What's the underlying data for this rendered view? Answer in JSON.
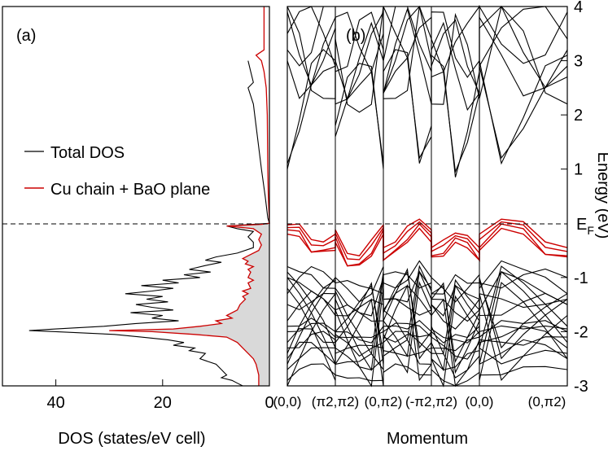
{
  "chart_data": [
    {
      "panel_label": "(a)",
      "type": "line",
      "orientation": "horizontal-dos",
      "xlabel": "DOS  (states/eV cell)",
      "x_ticks": [
        40,
        20,
        0
      ],
      "xlim": [
        50,
        0
      ],
      "ylim": [
        -3,
        4
      ],
      "grid": false,
      "legend_position": "middle-left",
      "series": [
        {
          "name": "Total DOS",
          "color": "#000000",
          "points": [
            [
              4.0,
              3.0
            ],
            [
              3.5,
              2.8
            ],
            [
              3.0,
              2.6
            ],
            [
              4.0,
              2.5
            ],
            [
              3.0,
              2.2
            ],
            [
              2.5,
              1.8
            ],
            [
              2.0,
              1.4
            ],
            [
              1.5,
              1.0
            ],
            [
              0.8,
              0.5
            ],
            [
              0.3,
              0.1
            ],
            [
              0.0,
              0.0
            ],
            [
              3.0,
              -0.02
            ],
            [
              8.0,
              -0.05
            ],
            [
              6.0,
              -0.1
            ],
            [
              3.0,
              -0.15
            ],
            [
              4.0,
              -0.25
            ],
            [
              3.0,
              -0.35
            ],
            [
              3.0,
              -0.45
            ],
            [
              6.0,
              -0.55
            ],
            [
              10.0,
              -0.62
            ],
            [
              12.0,
              -0.68
            ],
            [
              9.0,
              -0.72
            ],
            [
              12.0,
              -0.78
            ],
            [
              15.0,
              -0.85
            ],
            [
              11.0,
              -0.9
            ],
            [
              16.0,
              -0.95
            ],
            [
              13.0,
              -1.0
            ],
            [
              20.0,
              -1.05
            ],
            [
              17.0,
              -1.1
            ],
            [
              24.0,
              -1.15
            ],
            [
              18.0,
              -1.2
            ],
            [
              22.0,
              -1.25
            ],
            [
              27.0,
              -1.3
            ],
            [
              20.0,
              -1.35
            ],
            [
              23.0,
              -1.4
            ],
            [
              19.0,
              -1.45
            ],
            [
              25.0,
              -1.5
            ],
            [
              22.0,
              -1.55
            ],
            [
              18.0,
              -1.6
            ],
            [
              26.0,
              -1.65
            ],
            [
              20.0,
              -1.7
            ],
            [
              22.0,
              -1.75
            ],
            [
              17.0,
              -1.8
            ],
            [
              25.0,
              -1.85
            ],
            [
              31.0,
              -1.9
            ],
            [
              40.0,
              -1.95
            ],
            [
              45.0,
              -1.98
            ],
            [
              40.0,
              -2.0
            ],
            [
              29.0,
              -2.05
            ],
            [
              24.0,
              -2.1
            ],
            [
              19.0,
              -2.15
            ],
            [
              16.0,
              -2.2
            ],
            [
              18.0,
              -2.25
            ],
            [
              14.0,
              -2.3
            ],
            [
              15.0,
              -2.35
            ],
            [
              12.0,
              -2.4
            ],
            [
              13.0,
              -2.5
            ],
            [
              10.0,
              -2.6
            ],
            [
              9.0,
              -2.7
            ],
            [
              8.0,
              -2.8
            ],
            [
              9.0,
              -2.85
            ],
            [
              7.0,
              -2.9
            ],
            [
              6.0,
              -2.95
            ],
            [
              5.0,
              -3.0
            ]
          ]
        },
        {
          "name": "Cu chain + BaO plane",
          "color": "#cc0000",
          "fill": "#d9d9d9",
          "points": [
            [
              1.0,
              4.0
            ],
            [
              1.0,
              3.2
            ],
            [
              2.5,
              3.1
            ],
            [
              1.5,
              3.0
            ],
            [
              1.0,
              2.8
            ],
            [
              0.6,
              2.5
            ],
            [
              0.4,
              2.0
            ],
            [
              0.3,
              1.0
            ],
            [
              0.2,
              0.5
            ],
            [
              0.0,
              0.0
            ],
            [
              1.5,
              -0.02
            ],
            [
              8.0,
              -0.05
            ],
            [
              3.0,
              -0.1
            ],
            [
              1.5,
              -0.2
            ],
            [
              2.0,
              -0.3
            ],
            [
              1.5,
              -0.4
            ],
            [
              2.0,
              -0.5
            ],
            [
              4.0,
              -0.6
            ],
            [
              5.0,
              -0.65
            ],
            [
              4.0,
              -0.7
            ],
            [
              4.5,
              -0.75
            ],
            [
              3.0,
              -0.8
            ],
            [
              4.0,
              -0.85
            ],
            [
              3.5,
              -0.9
            ],
            [
              4.0,
              -1.0
            ],
            [
              3.0,
              -1.05
            ],
            [
              4.0,
              -1.1
            ],
            [
              3.5,
              -1.2
            ],
            [
              5.0,
              -1.25
            ],
            [
              4.0,
              -1.3
            ],
            [
              5.0,
              -1.35
            ],
            [
              4.5,
              -1.4
            ],
            [
              5.5,
              -1.5
            ],
            [
              6.0,
              -1.6
            ],
            [
              8.0,
              -1.7
            ],
            [
              7.0,
              -1.75
            ],
            [
              10.0,
              -1.8
            ],
            [
              9.0,
              -1.85
            ],
            [
              13.0,
              -1.9
            ],
            [
              18.0,
              -1.95
            ],
            [
              30.0,
              -1.98
            ],
            [
              22.0,
              -2.0
            ],
            [
              14.0,
              -2.05
            ],
            [
              8.0,
              -2.1
            ],
            [
              6.0,
              -2.2
            ],
            [
              5.0,
              -2.3
            ],
            [
              4.0,
              -2.4
            ],
            [
              3.0,
              -2.5
            ],
            [
              2.5,
              -2.6
            ],
            [
              2.0,
              -2.8
            ],
            [
              2.0,
              -3.0
            ]
          ]
        }
      ]
    },
    {
      "panel_label": "(b)",
      "type": "line",
      "xlabel": "Momentum",
      "ylabel": "Energy  (eV)",
      "ylim": [
        -3,
        4
      ],
      "y_ticks": [
        "4",
        "3",
        "2",
        "1",
        "-1",
        "-2",
        "-3"
      ],
      "fermi_label": "E",
      "fermi_subscript": "F",
      "fermi_energy": 0,
      "grid": false,
      "k_points": [
        "(0,0)",
        "(π/2,π/2)",
        "(0,π/2)",
        "(-π/2,π/2)",
        "(0,0)",
        "(0,π/2)"
      ],
      "k_labels": [
        {
          "parts": [
            "(0,0)"
          ]
        },
        {
          "parts": [
            "(",
            "π",
            "2",
            ",",
            "π",
            "2",
            ")"
          ]
        },
        {
          "parts": [
            "(",
            "0",
            ",",
            "π",
            "2",
            ")"
          ]
        },
        {
          "parts": [
            "(",
            "-",
            "π",
            "2",
            ",",
            "π",
            "2",
            ")"
          ]
        },
        {
          "parts": [
            "(0,0)"
          ]
        },
        {
          "parts": [
            "(",
            "0",
            ",",
            "π",
            "2",
            ")"
          ]
        }
      ],
      "band_sample_points": [
        0,
        0.25,
        0.5,
        0.75,
        1
      ],
      "bands_black": [
        [
          3.0,
          2.2,
          2.4,
          3.2,
          3.8
        ],
        [
          3.2,
          2.8,
          3.0,
          3.9,
          4.0
        ],
        [
          1.1,
          1.6,
          2.4,
          2.7,
          2.9
        ],
        [
          3.9,
          3.0,
          2.4,
          2.9,
          3.6
        ],
        [
          4.0,
          3.4,
          2.3,
          2.2,
          2.3
        ],
        [
          3.5,
          3.8,
          4.0,
          3.4,
          2.9
        ],
        [
          1.0,
          1.8,
          2.8,
          3.1,
          3.0
        ],
        [
          -0.8,
          -1.0,
          -1.1,
          -1.3,
          -1.2
        ],
        [
          -1.0,
          -1.2,
          -1.4,
          -1.5,
          -1.6
        ],
        [
          -1.3,
          -1.1,
          -0.95,
          -1.0,
          -1.1
        ],
        [
          -1.5,
          -1.7,
          -1.6,
          -1.4,
          -1.3
        ],
        [
          -1.8,
          -1.6,
          -1.4,
          -1.5,
          -1.7
        ],
        [
          -1.9,
          -2.0,
          -1.9,
          -2.0,
          -2.1
        ],
        [
          -2.0,
          -2.1,
          -2.0,
          -1.95,
          -2.0
        ],
        [
          -2.2,
          -2.05,
          -2.1,
          -2.3,
          -2.2
        ],
        [
          -2.3,
          -2.4,
          -2.2,
          -2.1,
          -2.15
        ],
        [
          -2.5,
          -2.3,
          -2.35,
          -2.5,
          -2.6
        ],
        [
          -2.7,
          -2.6,
          -2.45,
          -2.4,
          -2.3
        ],
        [
          -2.9,
          -2.8,
          -2.75,
          -2.7,
          -2.8
        ],
        [
          -1.0,
          -1.4,
          -1.8,
          -2.2,
          -2.6
        ],
        [
          -2.6,
          -2.2,
          -1.8,
          -1.4,
          -1.0
        ],
        [
          -0.9,
          -1.25,
          -1.6,
          -1.9,
          -2.3
        ],
        [
          -2.4,
          -2.0,
          -1.65,
          -1.3,
          -1.05
        ],
        [
          -1.2,
          -1.6,
          -2.05,
          -2.5,
          -2.9
        ],
        [
          -3.0,
          -2.6,
          -2.15,
          -1.7,
          -1.3
        ]
      ],
      "bands_red": [
        [
          -0.03,
          -0.12,
          -0.45,
          -0.45,
          -0.2
        ],
        [
          -0.08,
          -0.18,
          -0.55,
          -0.52,
          -0.3
        ],
        [
          -0.12,
          -0.25,
          -0.68,
          -0.6,
          -0.45
        ],
        [
          -0.2,
          -0.35,
          -0.68,
          -0.62,
          -0.5
        ]
      ]
    }
  ]
}
